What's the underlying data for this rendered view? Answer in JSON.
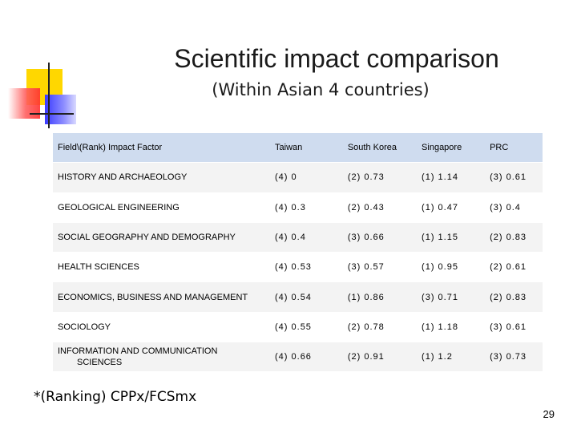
{
  "slide": {
    "title": "Scientific impact comparison",
    "subtitle": "(Within Asian 4 countries)",
    "footnote": "*(Ranking) CPPx/FCSmx",
    "page_number": "29"
  },
  "colors": {
    "header_row": "#cfdcef",
    "stripe_row": "#f3f3f3",
    "deco_yellow": "#ffd700",
    "deco_red": "#ff3030",
    "deco_blue": "#3b3bff"
  },
  "table": {
    "headers": [
      "Field\\(Rank) Impact Factor",
      "Taiwan",
      "South Korea",
      "Singapore",
      "PRC"
    ],
    "rows": [
      [
        "HISTORY AND ARCHAEOLOGY",
        "(4)  0",
        "(2)  0.73",
        "(1)  1.14",
        "(3)  0.61"
      ],
      [
        "GEOLOGICAL ENGINEERING",
        "(4)  0.3",
        "(2)  0.43",
        "(1)  0.47",
        "(3)  0.4"
      ],
      [
        "SOCIAL GEOGRAPHY AND DEMOGRAPHY",
        "(4)  0.4",
        "(3)  0.66",
        "(1)  1.15",
        "(2)  0.83"
      ],
      [
        "HEALTH SCIENCES",
        "(4)  0.53",
        "(3)  0.57",
        "(1)  0.95",
        "(2)  0.61"
      ],
      [
        "ECONOMICS, BUSINESS AND MANAGEMENT",
        "(4)  0.54",
        "(1)  0.86",
        "(3)  0.71",
        "(2)  0.83"
      ],
      [
        "SOCIOLOGY",
        "(4)  0.55",
        "(2)  0.78",
        "(1)  1.18",
        "(3)  0.61"
      ],
      [
        "INFORMATION AND COMMUNICATION",
        "(4)  0.66",
        "(2)  0.91",
        "(1)  1.2",
        "(3)  0.73"
      ]
    ],
    "last_row_label_line2": "SCIENCES"
  }
}
